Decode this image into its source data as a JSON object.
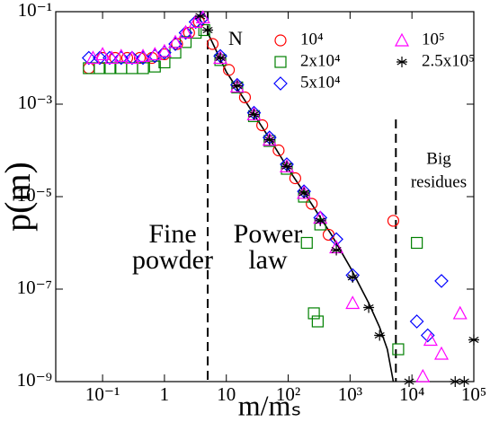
{
  "chart_data": {
    "type": "scatter",
    "log_x": true,
    "log_y": true,
    "x_label": "m/mₛ",
    "y_label": "p(m)",
    "xlim": [
      0.0175,
      100000
    ],
    "ylim": [
      1e-09,
      0.1
    ],
    "xticks": [
      {
        "value": 0.1,
        "label": "10⁻¹"
      },
      1,
      10,
      {
        "value": 100,
        "label": "10²"
      },
      {
        "value": 1000,
        "label": "10³"
      },
      {
        "value": 10000,
        "label": "10⁴"
      },
      {
        "value": 100000,
        "label": "10⁵"
      }
    ],
    "yticks": [
      {
        "value": 0.1,
        "label": "10⁻¹"
      },
      {
        "value": 0.001,
        "label": "10⁻³"
      },
      {
        "value": 1e-05,
        "label": "10⁻⁵"
      },
      {
        "value": 1e-07,
        "label": "10⁻⁷"
      },
      {
        "value": 1e-09,
        "label": "10⁻⁹"
      }
    ],
    "legend_title": "N",
    "series": [
      {
        "name": "10⁴",
        "color": "#ff0000",
        "marker": "circle",
        "x": [
          0.06,
          0.1,
          0.16,
          0.25,
          0.4,
          0.63,
          1,
          1.6,
          2.5,
          3.6,
          6,
          11,
          20,
          38,
          70,
          130,
          240,
          450,
          5000
        ],
        "values": [
          0.006,
          0.01,
          0.01,
          0.01,
          0.01,
          0.01,
          0.012,
          0.02,
          0.035,
          0.06,
          0.02,
          0.0055,
          0.0014,
          0.00035,
          0.0001,
          2.5e-05,
          7e-06,
          1.5e-06,
          3e-06
        ]
      },
      {
        "name": "2x10⁴",
        "color": "#008000",
        "marker": "square",
        "x": [
          0.06,
          0.09,
          0.13,
          0.2,
          0.3,
          0.45,
          0.7,
          1,
          1.5,
          2.2,
          3.2,
          4.4,
          8,
          15,
          28,
          50,
          95,
          180,
          330,
          200,
          260,
          300,
          6000,
          12000
        ],
        "values": [
          0.006,
          0.006,
          0.006,
          0.006,
          0.006,
          0.006,
          0.0065,
          0.008,
          0.013,
          0.022,
          0.035,
          0.04,
          0.009,
          0.0023,
          0.00055,
          0.00016,
          4e-05,
          1e-05,
          2.5e-06,
          1e-06,
          3e-08,
          2e-08,
          5e-09,
          1e-06
        ]
      },
      {
        "name": "5x10⁴",
        "color": "#0000ff",
        "marker": "diamond",
        "x": [
          0.06,
          0.09,
          0.13,
          0.2,
          0.3,
          0.45,
          0.7,
          1,
          1.5,
          2.2,
          3.2,
          4,
          8,
          15,
          28,
          50,
          95,
          180,
          330,
          600,
          1100,
          12000,
          18000,
          30000
        ],
        "values": [
          0.01,
          0.01,
          0.01,
          0.01,
          0.01,
          0.01,
          0.011,
          0.013,
          0.02,
          0.035,
          0.06,
          0.07,
          0.011,
          0.0026,
          0.00065,
          0.00019,
          5e-05,
          1.3e-05,
          3.5e-06,
          1.2e-06,
          2e-07,
          2e-08,
          1e-08,
          1.5e-07
        ]
      },
      {
        "name": "10⁵",
        "color": "#ff00ff",
        "marker": "triangle",
        "x": [
          0.07,
          0.1,
          0.14,
          0.2,
          0.3,
          0.45,
          0.7,
          1,
          1.5,
          2.2,
          3.2,
          4.2,
          8,
          15,
          28,
          50,
          95,
          180,
          330,
          600,
          1100,
          15000,
          20000,
          30000,
          60000
        ],
        "values": [
          0.01,
          0.012,
          0.01,
          0.011,
          0.01,
          0.011,
          0.012,
          0.014,
          0.022,
          0.036,
          0.06,
          0.075,
          0.01,
          0.0024,
          0.0006,
          0.00017,
          4.5e-05,
          1.2e-05,
          3.5e-06,
          8e-07,
          5e-08,
          1.3e-09,
          8e-09,
          4e-09,
          3e-08
        ]
      },
      {
        "name": "2.5x10⁵",
        "color": "#000000",
        "marker": "star",
        "x": [
          3.8,
          5,
          8,
          15,
          28,
          50,
          95,
          180,
          330,
          600,
          1100,
          2000,
          3000,
          9000,
          50000,
          70000,
          100000
        ],
        "values": [
          0.08,
          0.04,
          0.01,
          0.0025,
          0.0006,
          0.00017,
          4.5e-05,
          1.2e-05,
          3e-06,
          7e-07,
          1.8e-07,
          4e-08,
          1e-08,
          1e-09,
          1e-09,
          1e-09,
          8e-09
        ]
      }
    ],
    "fit": {
      "color": "#000000",
      "x": [
        5,
        10,
        20,
        50,
        100,
        200,
        500,
        1000,
        2000,
        3000,
        4000,
        5000
      ],
      "values": [
        0.035,
        0.005,
        0.0012,
        0.00018,
        4e-05,
        1e-05,
        1.5e-06,
        3e-07,
        5e-08,
        1.5e-08,
        5e-09,
        1e-09
      ]
    },
    "vlines": [
      5,
      5500
    ],
    "annotations": [
      "Fine",
      "powder",
      "Power",
      "law",
      "Big",
      "residues"
    ]
  }
}
